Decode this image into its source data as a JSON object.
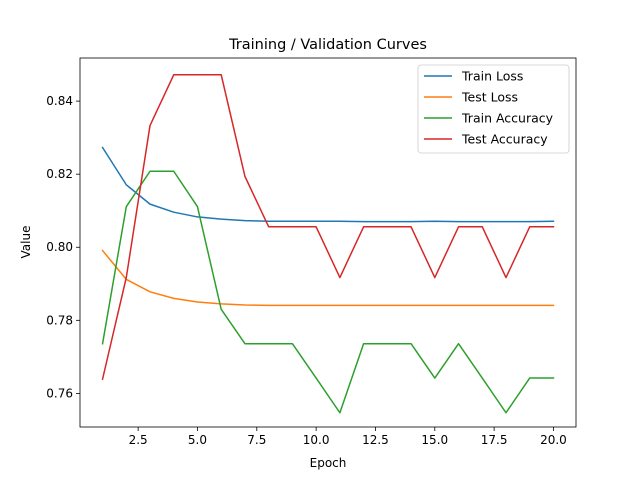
{
  "chart_data": {
    "type": "line",
    "title": "Training / Validation Curves",
    "xlabel": "Epoch",
    "ylabel": "Value",
    "xlim": [
      0.05,
      20.95
    ],
    "ylim": [
      0.7508,
      0.8518
    ],
    "x_ticks": [
      2.5,
      5.0,
      7.5,
      10.0,
      12.5,
      15.0,
      17.5,
      20.0
    ],
    "x_tick_labels": [
      "2.5",
      "5.0",
      "7.5",
      "10.0",
      "12.5",
      "15.0",
      "17.5",
      "20.0"
    ],
    "y_ticks": [
      0.76,
      0.78,
      0.8,
      0.82,
      0.84
    ],
    "y_tick_labels": [
      "0.76",
      "0.78",
      "0.80",
      "0.82",
      "0.84"
    ],
    "grid": false,
    "legend_position": "top-right",
    "x": [
      1,
      2,
      3,
      4,
      5,
      6,
      7,
      8,
      9,
      10,
      11,
      12,
      13,
      14,
      15,
      16,
      17,
      18,
      19,
      20
    ],
    "series": [
      {
        "name": "Train Loss",
        "color": "#1f77b4",
        "values": [
          0.8273,
          0.8171,
          0.8118,
          0.8096,
          0.8083,
          0.8077,
          0.8073,
          0.8071,
          0.8071,
          0.8071,
          0.8071,
          0.807,
          0.807,
          0.807,
          0.8071,
          0.807,
          0.807,
          0.807,
          0.807,
          0.8071
        ]
      },
      {
        "name": "Test Loss",
        "color": "#ff7f0e",
        "values": [
          0.7991,
          0.7912,
          0.7878,
          0.786,
          0.785,
          0.7845,
          0.7842,
          0.7841,
          0.7841,
          0.7841,
          0.7841,
          0.7841,
          0.7841,
          0.7841,
          0.7841,
          0.7841,
          0.7841,
          0.7841,
          0.7841,
          0.7841
        ]
      },
      {
        "name": "Train Accuracy",
        "color": "#2ca02c",
        "values": [
          0.7736,
          0.8111,
          0.8208,
          0.8208,
          0.8111,
          0.783,
          0.7736,
          0.7736,
          0.7736,
          0.7642,
          0.7547,
          0.7736,
          0.7736,
          0.7736,
          0.7642,
          0.7736,
          0.7642,
          0.7547,
          0.7642,
          0.7642
        ]
      },
      {
        "name": "Test Accuracy",
        "color": "#d62728",
        "values": [
          0.7639,
          0.7917,
          0.8333,
          0.8472,
          0.8472,
          0.8472,
          0.8194,
          0.8056,
          0.8056,
          0.8056,
          0.7917,
          0.8056,
          0.8056,
          0.8056,
          0.7917,
          0.8056,
          0.8056,
          0.7917,
          0.8056,
          0.8056
        ]
      }
    ]
  }
}
